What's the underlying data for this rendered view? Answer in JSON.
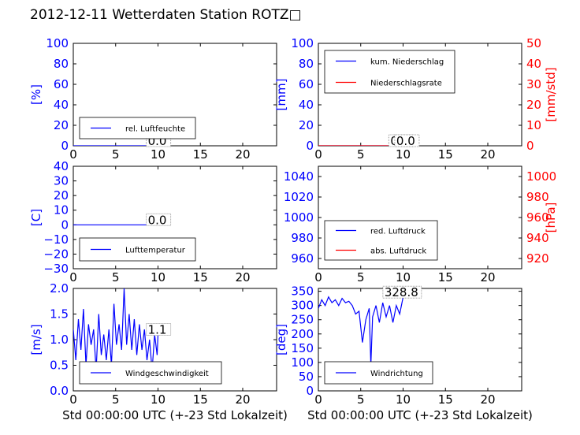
{
  "title": "2012-12-11 Wetterdaten Station ROTZ□",
  "chart_data": [
    {
      "type": "line",
      "id": "humidity",
      "ylabel": "[%]",
      "xlim": [
        0,
        24
      ],
      "ylim": [
        0,
        100
      ],
      "xticks": [
        0,
        5,
        10,
        15,
        20
      ],
      "yticks": [
        0,
        20,
        40,
        60,
        80,
        100
      ],
      "series": [
        {
          "name": "rel. Luftfeuchte",
          "color": "#0000ff",
          "x": [
            0,
            10
          ],
          "y": [
            0,
            0
          ]
        }
      ],
      "annotations": [
        {
          "text": "0.0",
          "x": 8.8,
          "y": 0
        }
      ],
      "legend": "lower-left"
    },
    {
      "type": "line",
      "id": "precip",
      "ylabel": "[mm]",
      "ylabel_right": "[mm/std]",
      "xlim": [
        0,
        24
      ],
      "ylim": [
        0,
        100
      ],
      "ylim_right": [
        0,
        50
      ],
      "xticks": [
        0,
        5,
        10,
        15,
        20
      ],
      "yticks": [
        0,
        20,
        40,
        60,
        80,
        100
      ],
      "yticks_right": [
        0,
        10,
        20,
        30,
        40,
        50
      ],
      "series": [
        {
          "name": "kum. Niederschlag",
          "color": "#0000ff",
          "x": [
            0,
            10
          ],
          "y": [
            0,
            0
          ]
        },
        {
          "name": "Niederschlagsrate",
          "color": "#ff0000",
          "x": [
            0,
            10
          ],
          "y": [
            0,
            0
          ],
          "axis": "right"
        }
      ],
      "annotations": [
        {
          "text": "0.0",
          "x": 8.5,
          "y": 0
        },
        {
          "text": "0.0",
          "x": 9.2,
          "y": 0
        }
      ],
      "legend": "upper-left"
    },
    {
      "type": "line",
      "id": "temperature",
      "ylabel": "[C]",
      "xlim": [
        0,
        24
      ],
      "ylim": [
        -30,
        40
      ],
      "xticks": [
        0,
        5,
        10,
        15,
        20
      ],
      "yticks": [
        -30,
        -20,
        -10,
        0,
        10,
        20,
        30,
        40
      ],
      "series": [
        {
          "name": "Lufttemperatur",
          "color": "#0000ff",
          "x": [
            0,
            10
          ],
          "y": [
            0,
            0
          ]
        }
      ],
      "annotations": [
        {
          "text": "0.0",
          "x": 8.8,
          "y": 0
        }
      ],
      "legend": "lower-left"
    },
    {
      "type": "line",
      "id": "pressure",
      "ylabel_right": "[hPa]",
      "xlim": [
        0,
        24
      ],
      "ylim": [
        950,
        1050
      ],
      "ylim_right": [
        910,
        1010
      ],
      "xticks": [
        0,
        5,
        10,
        15,
        20
      ],
      "yticks": [
        960,
        980,
        1000,
        1020,
        1040
      ],
      "yticks_right": [
        920,
        940,
        960,
        980,
        1000
      ],
      "series": [
        {
          "name": "red. Luftdruck",
          "color": "#0000ff",
          "x": [],
          "y": []
        },
        {
          "name": "abs. Luftdruck",
          "color": "#ff0000",
          "x": [],
          "y": [],
          "axis": "right"
        }
      ],
      "legend": "lower-left"
    },
    {
      "type": "line",
      "id": "wind",
      "ylabel": "[m/s]",
      "xlabel": "Std 00:00:00 UTC (+-23 Std Lokalzeit)",
      "xlim": [
        0,
        24
      ],
      "ylim": [
        0,
        2
      ],
      "xticks": [
        0,
        5,
        10,
        15,
        20
      ],
      "yticks": [
        0.0,
        0.5,
        1.0,
        1.5,
        2.0
      ],
      "series": [
        {
          "name": "Windgeschwindigkeit",
          "color": "#0000ff",
          "x": [
            0,
            0.3,
            0.6,
            0.9,
            1.2,
            1.5,
            1.8,
            2.1,
            2.4,
            2.7,
            3.0,
            3.3,
            3.6,
            3.9,
            4.2,
            4.5,
            4.8,
            5.1,
            5.4,
            5.7,
            6.0,
            6.3,
            6.6,
            6.9,
            7.2,
            7.5,
            7.8,
            8.1,
            8.4,
            8.7,
            9.0,
            9.3,
            9.6,
            9.9,
            10.0
          ],
          "y": [
            1.2,
            0.6,
            1.4,
            0.8,
            1.6,
            0.5,
            1.3,
            0.9,
            1.2,
            0.4,
            1.5,
            0.7,
            1.1,
            0.6,
            1.2,
            0.5,
            1.7,
            0.9,
            1.3,
            0.8,
            2.0,
            0.9,
            1.5,
            0.8,
            1.4,
            0.7,
            1.3,
            0.8,
            1.2,
            0.6,
            1.0,
            0.4,
            1.1,
            0.7,
            1.1
          ]
        }
      ],
      "annotations": [
        {
          "text": "1.1",
          "x": 8.8,
          "y": 1.1
        }
      ],
      "legend": "lower-left"
    },
    {
      "type": "line",
      "id": "winddir",
      "ylabel": "[deg]",
      "xlabel": "Std 00:00:00 UTC (+-23 Std Lokalzeit)",
      "xlim": [
        0,
        24
      ],
      "ylim": [
        0,
        360
      ],
      "xticks": [
        0,
        5,
        10,
        15,
        20
      ],
      "yticks": [
        0,
        50,
        100,
        150,
        200,
        250,
        300,
        350
      ],
      "series": [
        {
          "name": "Windrichtung",
          "color": "#0000ff",
          "x": [
            0,
            0.4,
            0.8,
            1.2,
            1.6,
            2.0,
            2.4,
            2.8,
            3.2,
            3.6,
            4.0,
            4.4,
            4.8,
            5.2,
            5.6,
            6.0,
            6.2,
            6.4,
            6.8,
            7.2,
            7.6,
            8.0,
            8.4,
            8.8,
            9.2,
            9.6,
            10.0
          ],
          "y": [
            290,
            320,
            300,
            330,
            310,
            320,
            300,
            325,
            310,
            315,
            300,
            270,
            280,
            170,
            250,
            290,
            90,
            260,
            300,
            240,
            310,
            260,
            300,
            240,
            300,
            270,
            329
          ]
        }
      ],
      "annotations": [
        {
          "text": "328.8",
          "x": 7.8,
          "y": 329
        }
      ],
      "legend": "lower-left"
    }
  ]
}
